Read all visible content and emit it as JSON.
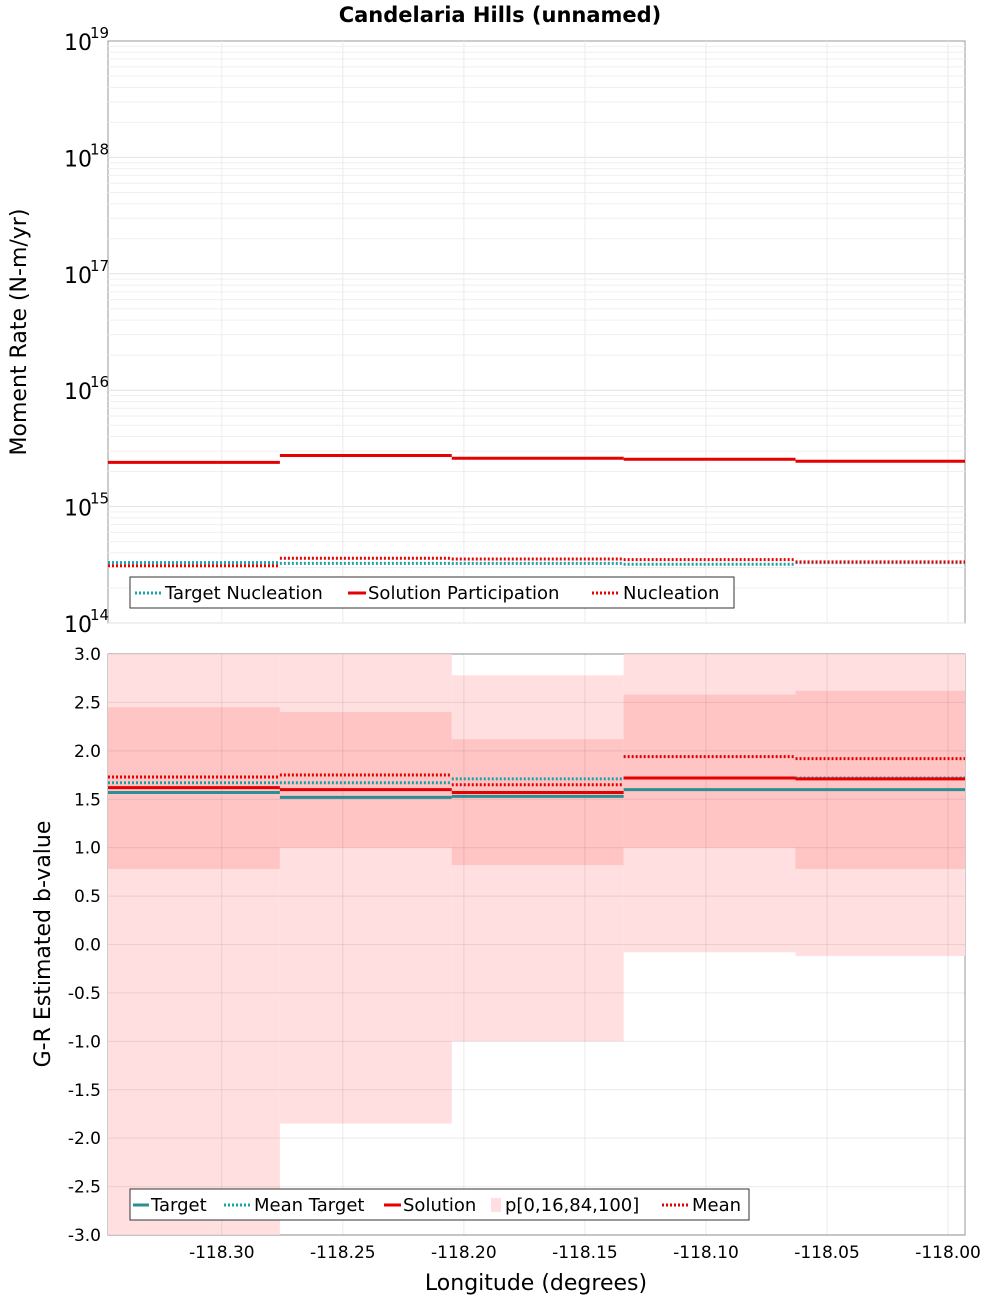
{
  "title": "Candelaria Hills (unnamed)",
  "x_axis": {
    "label": "Longitude (degrees)",
    "range": [
      -118.347,
      -117.993
    ],
    "ticks": [
      -118.3,
      -118.25,
      -118.2,
      -118.15,
      -118.1,
      -118.05,
      -118.0
    ],
    "tick_labels": [
      "-118.30",
      "-118.25",
      "-118.20",
      "-118.15",
      "-118.10",
      "-118.05",
      "-118.00"
    ]
  },
  "bins": [
    -118.347,
    -118.276,
    -118.205,
    -118.134,
    -118.063,
    -117.993
  ],
  "colors": {
    "target": "#1aa3a8",
    "solution": "#e60000",
    "band_outer": "#ffdfdf",
    "band_inner": "#ffc4c4"
  },
  "chart_data": [
    {
      "type": "line",
      "name": "moment-rate",
      "ylabel": "Moment Rate (N-m/yr)",
      "yscale": "log",
      "ylim": [
        100000000000000.0,
        1e+19
      ],
      "y_tick_exponents": [
        14,
        15,
        16,
        17,
        18,
        19
      ],
      "y_tick_base": "10",
      "legend": [
        "Target Nucleation",
        "Solution Participation",
        "Nucleation"
      ],
      "legend_placement": "bottom-left",
      "series": [
        {
          "name": "Target Nucleation",
          "style": "dotted",
          "color": "#1aa3a8",
          "values": [
            330000000000000.0,
            325000000000000.0,
            325000000000000.0,
            320000000000000.0,
            330000000000000.0
          ]
        },
        {
          "name": "Solution Participation",
          "style": "solid",
          "color": "#e60000",
          "values": [
            2400000000000000.0,
            2750000000000000.0,
            2600000000000000.0,
            2550000000000000.0,
            2450000000000000.0
          ]
        },
        {
          "name": "Nucleation",
          "style": "dotted",
          "color": "#e60000",
          "values": [
            310000000000000.0,
            360000000000000.0,
            355000000000000.0,
            350000000000000.0,
            335000000000000.0
          ]
        }
      ]
    },
    {
      "type": "line",
      "name": "b-value",
      "ylabel": "G-R Estimated b-value",
      "ylim": [
        -3.0,
        3.0
      ],
      "y_ticks": [
        3.0,
        2.5,
        2.0,
        1.5,
        1.0,
        0.5,
        0.0,
        -0.5,
        -1.0,
        -1.5,
        -2.0,
        -2.5,
        -3.0
      ],
      "y_tick_labels": [
        "3.0",
        "2.5",
        "2.0",
        "1.5",
        "1.0",
        "0.5",
        "0.0",
        "-0.5",
        "-1.0",
        "-1.5",
        "-2.0",
        "-2.5",
        "-3.0"
      ],
      "legend": [
        "Target",
        "Mean Target",
        "Solution",
        "p[0,16,84,100]",
        "Mean"
      ],
      "legend_placement": "bottom-left",
      "bands": {
        "name": "p[0,16,84,100]",
        "p0": [
          -3.0,
          -1.85,
          -1.0,
          -0.08,
          -0.12
        ],
        "p16": [
          0.78,
          1.0,
          0.82,
          1.0,
          0.78
        ],
        "p84": [
          2.45,
          2.4,
          2.12,
          2.58,
          2.62
        ],
        "p100": [
          3.0,
          3.0,
          2.78,
          3.0,
          3.0
        ]
      },
      "series": [
        {
          "name": "Target",
          "style": "solid",
          "color": "#2a8f95",
          "values": [
            1.57,
            1.52,
            1.53,
            1.6,
            1.6
          ]
        },
        {
          "name": "Mean Target",
          "style": "dotted",
          "color": "#1aa3a8",
          "values": [
            1.67,
            1.67,
            1.71,
            1.72,
            1.72
          ]
        },
        {
          "name": "Solution",
          "style": "solid",
          "color": "#e60000",
          "values": [
            1.62,
            1.6,
            1.57,
            1.72,
            1.71
          ]
        },
        {
          "name": "Mean",
          "style": "dotted",
          "color": "#e60000",
          "values": [
            1.73,
            1.75,
            1.65,
            1.94,
            1.92
          ]
        }
      ]
    }
  ]
}
